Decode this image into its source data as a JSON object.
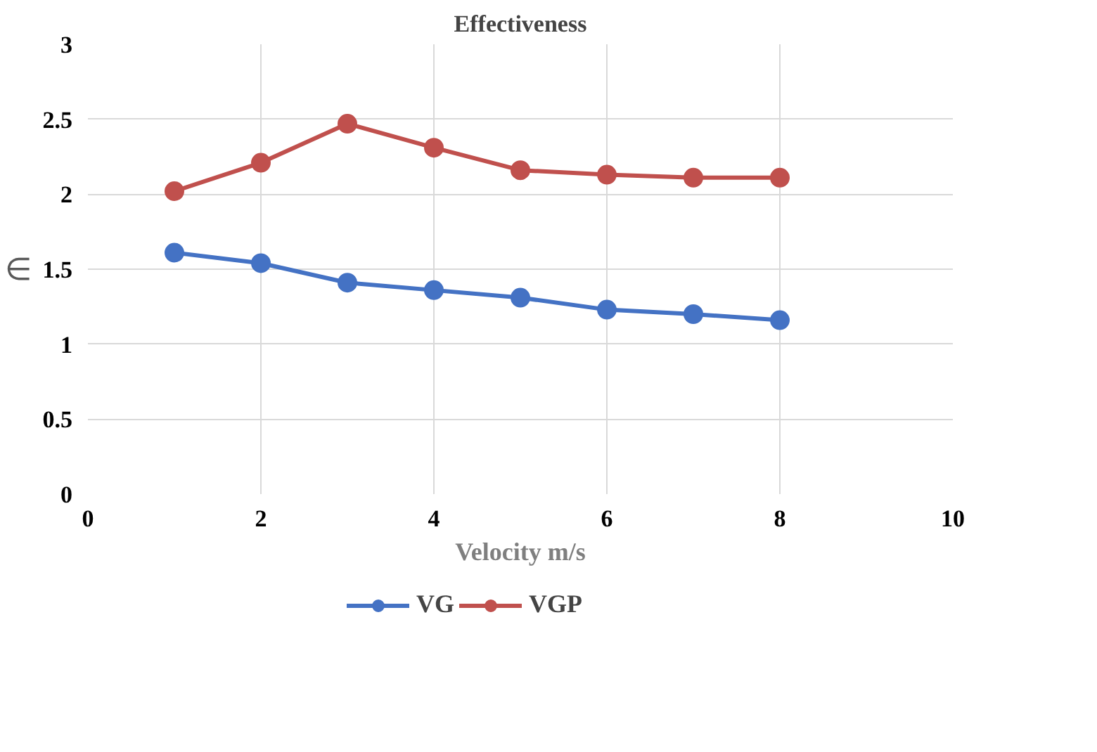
{
  "chart_data": {
    "type": "line",
    "title": "Effectiveness",
    "xlabel": "Velocity m/s",
    "ylabel": "∈",
    "x": [
      1,
      2,
      3,
      4,
      5,
      6,
      7,
      8
    ],
    "series": [
      {
        "name": "VG",
        "color": "#4472c4",
        "values": [
          1.61,
          1.54,
          1.41,
          1.36,
          1.31,
          1.23,
          1.2,
          1.16
        ]
      },
      {
        "name": "VGP",
        "color": "#c0504d",
        "values": [
          2.02,
          2.21,
          2.47,
          2.31,
          2.16,
          2.13,
          2.11,
          2.11
        ]
      }
    ],
    "xlim": [
      0,
      10
    ],
    "xticks": [
      0,
      2,
      4,
      6,
      8,
      10
    ],
    "ylim": [
      0,
      3
    ],
    "yticks": [
      0,
      0.5,
      1,
      1.5,
      2,
      2.5,
      3
    ],
    "grid": true,
    "legend": "bottom",
    "marker": "circle",
    "line_style": "solid"
  }
}
